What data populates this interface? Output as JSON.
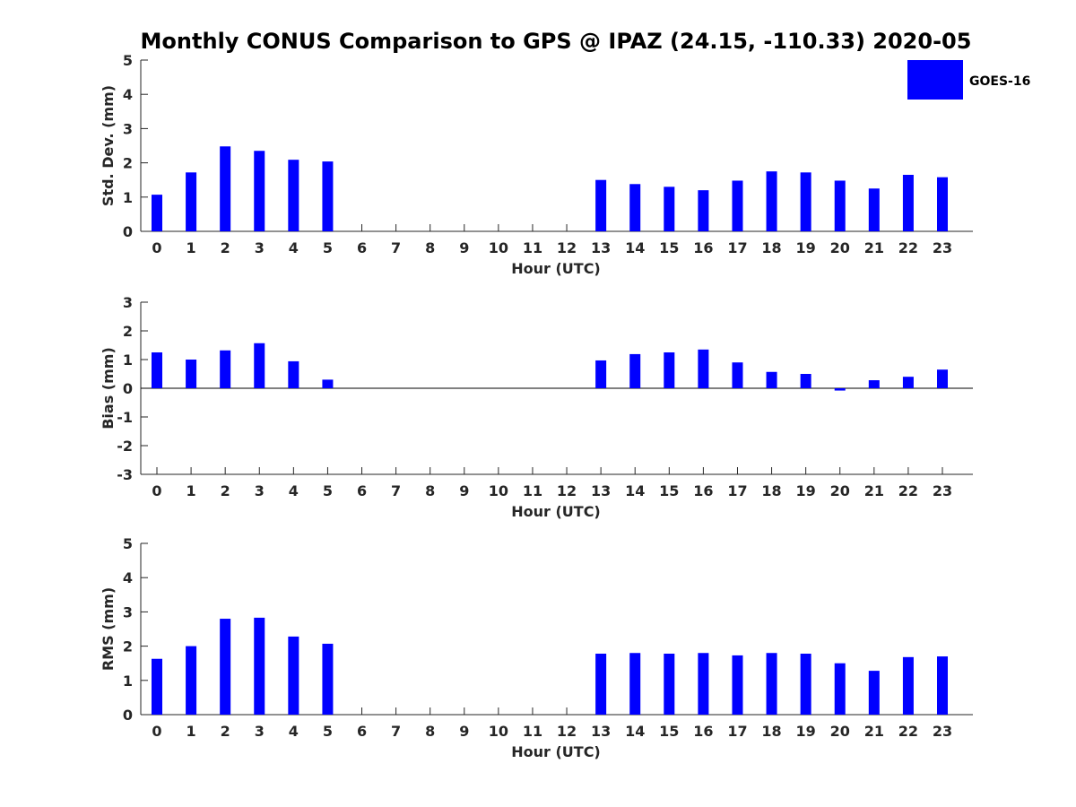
{
  "colors": {
    "bar": "#0000ff",
    "axis": "#262626",
    "zero_line": "#000000"
  },
  "chart_data": {
    "title": "Monthly CONUS Comparison to GPS @ IPAZ (24.15, -110.33) 2020-05",
    "legend": {
      "label": "GOES-16",
      "placement": "top-right",
      "color": "#0000ff"
    },
    "panels": [
      {
        "type": "bar",
        "ylabel": "Std. Dev. (mm)",
        "xlabel": "Hour (UTC)",
        "ylim": [
          0,
          5
        ],
        "yticks": [
          0,
          1,
          2,
          3,
          4,
          5
        ],
        "categories": [
          "0",
          "1",
          "2",
          "3",
          "4",
          "5",
          "6",
          "7",
          "8",
          "9",
          "10",
          "11",
          "12",
          "13",
          "14",
          "15",
          "16",
          "17",
          "18",
          "19",
          "20",
          "21",
          "22",
          "23"
        ],
        "series": [
          {
            "name": "GOES-16",
            "values": [
              1.07,
              1.72,
              2.48,
              2.35,
              2.09,
              2.04,
              null,
              null,
              null,
              null,
              null,
              null,
              null,
              1.5,
              1.38,
              1.3,
              1.2,
              1.48,
              1.75,
              1.72,
              1.48,
              1.25,
              1.65,
              1.58
            ]
          }
        ]
      },
      {
        "type": "bar",
        "ylabel": "Bias (mm)",
        "xlabel": "Hour (UTC)",
        "ylim": [
          -3,
          3
        ],
        "yticks": [
          -3,
          -2,
          -1,
          0,
          1,
          2,
          3
        ],
        "zero_line": true,
        "categories": [
          "0",
          "1",
          "2",
          "3",
          "4",
          "5",
          "6",
          "7",
          "8",
          "9",
          "10",
          "11",
          "12",
          "13",
          "14",
          "15",
          "16",
          "17",
          "18",
          "19",
          "20",
          "21",
          "22",
          "23"
        ],
        "series": [
          {
            "name": "GOES-16",
            "values": [
              1.25,
              1.0,
              1.32,
              1.57,
              0.94,
              0.3,
              null,
              null,
              null,
              null,
              null,
              null,
              null,
              0.97,
              1.19,
              1.25,
              1.35,
              0.9,
              0.57,
              0.5,
              -0.08,
              0.28,
              0.4,
              0.65
            ]
          }
        ]
      },
      {
        "type": "bar",
        "ylabel": "RMS (mm)",
        "xlabel": "Hour (UTC)",
        "ylim": [
          0,
          5
        ],
        "yticks": [
          0,
          1,
          2,
          3,
          4,
          5
        ],
        "categories": [
          "0",
          "1",
          "2",
          "3",
          "4",
          "5",
          "6",
          "7",
          "8",
          "9",
          "10",
          "11",
          "12",
          "13",
          "14",
          "15",
          "16",
          "17",
          "18",
          "19",
          "20",
          "21",
          "22",
          "23"
        ],
        "series": [
          {
            "name": "GOES-16",
            "values": [
              1.63,
              2.0,
              2.8,
              2.83,
              2.28,
              2.07,
              null,
              null,
              null,
              null,
              null,
              null,
              null,
              1.78,
              1.8,
              1.78,
              1.8,
              1.73,
              1.8,
              1.78,
              1.5,
              1.28,
              1.68,
              1.7
            ]
          }
        ]
      }
    ]
  }
}
